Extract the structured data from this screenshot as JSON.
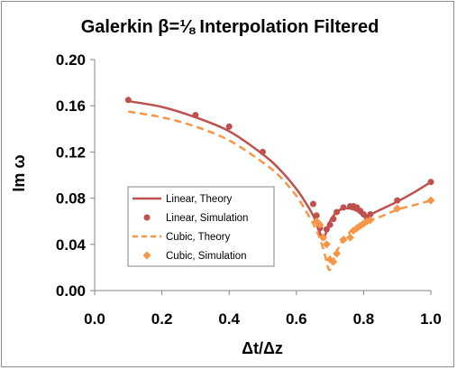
{
  "chart_data": {
    "type": "line",
    "title": "Galerkin β=⅛ Interpolation Filtered",
    "xlabel": "Δt/Δz",
    "ylabel": "Im ω",
    "xlim": [
      0.0,
      1.0
    ],
    "ylim": [
      0.0,
      0.2
    ],
    "x_ticks": [
      "0.0",
      "0.2",
      "0.4",
      "0.6",
      "0.8",
      "1.0"
    ],
    "y_ticks": [
      "0.00",
      "0.04",
      "0.08",
      "0.12",
      "0.16",
      "0.20"
    ],
    "grid": false,
    "legend_position": "lower-left",
    "series": [
      {
        "name": "Linear, Theory",
        "kind": "line",
        "style": "solid",
        "color": "#c0504d",
        "x": [
          0.1,
          0.2,
          0.3,
          0.4,
          0.5,
          0.55,
          0.6,
          0.63,
          0.65,
          0.66,
          0.67,
          0.675,
          0.68,
          0.685,
          0.69,
          0.7,
          0.72,
          0.74,
          0.76,
          0.78,
          0.8,
          0.82,
          0.85,
          0.9,
          0.95,
          1.0
        ],
        "y": [
          0.164,
          0.159,
          0.15,
          0.138,
          0.118,
          0.105,
          0.088,
          0.075,
          0.065,
          0.058,
          0.05,
          0.047,
          0.045,
          0.047,
          0.052,
          0.06,
          0.068,
          0.071,
          0.071,
          0.069,
          0.065,
          0.066,
          0.07,
          0.077,
          0.085,
          0.094
        ]
      },
      {
        "name": "Linear, Simulation",
        "kind": "scatter",
        "marker": "circle",
        "color": "#c0504d",
        "x": [
          0.1,
          0.3,
          0.4,
          0.5,
          0.65,
          0.66,
          0.67,
          0.68,
          0.69,
          0.7,
          0.71,
          0.72,
          0.74,
          0.76,
          0.77,
          0.78,
          0.79,
          0.8,
          0.81,
          0.82,
          0.9,
          1.0
        ],
        "y": [
          0.165,
          0.152,
          0.142,
          0.12,
          0.075,
          0.065,
          0.054,
          0.046,
          0.053,
          0.057,
          0.062,
          0.068,
          0.072,
          0.073,
          0.073,
          0.072,
          0.069,
          0.066,
          0.063,
          0.066,
          0.078,
          0.094
        ]
      },
      {
        "name": "Cubic, Theory",
        "kind": "line",
        "style": "dashed",
        "color": "#f79646",
        "x": [
          0.1,
          0.2,
          0.3,
          0.4,
          0.5,
          0.55,
          0.6,
          0.63,
          0.65,
          0.66,
          0.67,
          0.68,
          0.69,
          0.695,
          0.7,
          0.705,
          0.71,
          0.72,
          0.74,
          0.76,
          0.78,
          0.8,
          0.85,
          0.9,
          0.95,
          1.0
        ],
        "y": [
          0.155,
          0.15,
          0.142,
          0.13,
          0.111,
          0.099,
          0.082,
          0.068,
          0.058,
          0.052,
          0.045,
          0.036,
          0.025,
          0.019,
          0.018,
          0.021,
          0.026,
          0.034,
          0.044,
          0.051,
          0.056,
          0.059,
          0.064,
          0.07,
          0.074,
          0.078
        ]
      },
      {
        "name": "Cubic, Simulation",
        "kind": "scatter",
        "marker": "diamond",
        "color": "#f79646",
        "x": [
          0.66,
          0.67,
          0.68,
          0.69,
          0.7,
          0.71,
          0.72,
          0.74,
          0.76,
          0.77,
          0.78,
          0.79,
          0.8,
          0.81,
          0.82,
          0.9,
          1.0
        ],
        "y": [
          0.06,
          0.057,
          0.046,
          0.04,
          0.027,
          0.025,
          0.032,
          0.044,
          0.046,
          0.052,
          0.054,
          0.056,
          0.058,
          0.06,
          0.061,
          0.071,
          0.078
        ]
      }
    ]
  }
}
